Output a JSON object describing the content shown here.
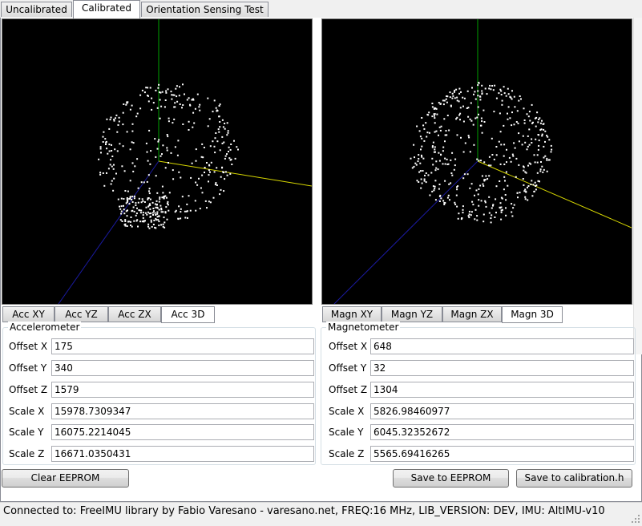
{
  "tabs": [
    "Uncalibrated",
    "Calibrated",
    "Orientation Sensing Test"
  ],
  "active_tab": 1,
  "accel": {
    "subtabs": [
      "Acc XY",
      "Acc YZ",
      "Acc ZX",
      "Acc 3D"
    ],
    "active_subtab": 3,
    "group_title": "Accelerometer",
    "rows": [
      {
        "label": "Offset X",
        "value": "175"
      },
      {
        "label": "Offset Y",
        "value": "340"
      },
      {
        "label": "Offset Z",
        "value": "1579"
      },
      {
        "label": "Scale X",
        "value": "15978.7309347"
      },
      {
        "label": "Scale Y",
        "value": "16075.2214045"
      },
      {
        "label": "Scale Z",
        "value": "16671.0350431"
      }
    ]
  },
  "magn": {
    "subtabs": [
      "Magn XY",
      "Magn YZ",
      "Magn ZX",
      "Magn 3D"
    ],
    "active_subtab": 3,
    "group_title": "Magnetometer",
    "rows": [
      {
        "label": "Offset X",
        "value": "648"
      },
      {
        "label": "Offset Y",
        "value": "32"
      },
      {
        "label": "Offset Z",
        "value": "1304"
      },
      {
        "label": "Scale X",
        "value": "5826.98460977"
      },
      {
        "label": "Scale Y",
        "value": "6045.32352672"
      },
      {
        "label": "Scale Z",
        "value": "5565.69416265"
      }
    ]
  },
  "buttons": {
    "clear_eeprom": "Clear EEPROM",
    "save_eeprom": "Save to EEPROM",
    "save_calibration": "Save to calibration.h"
  },
  "status_text": "Connected to: FreeIMU library by Fabio Varesano - varesano.net, FREQ:16 MHz, LIB_VERSION: DEV, IMU: AltIMU-v10",
  "colors": {
    "axis_green": "#00a000",
    "axis_yellow": "#d8d800",
    "axis_blue": "#1a1aa0",
    "points": "#ffffff",
    "plot_background": "#000000"
  }
}
